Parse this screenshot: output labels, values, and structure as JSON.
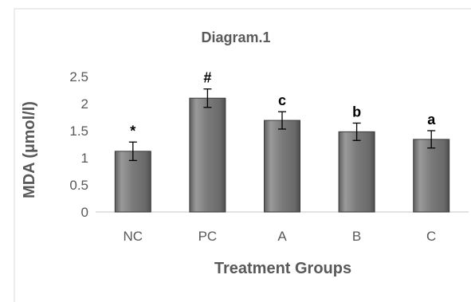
{
  "chart_data": {
    "type": "bar",
    "title": "Diagram.1",
    "xlabel": "Treatment Groups",
    "ylabel": "MDA (µmol/l)",
    "categories": [
      "NC",
      "PC",
      "A",
      "B",
      "C"
    ],
    "values": [
      1.12,
      2.1,
      1.69,
      1.48,
      1.34
    ],
    "errors": [
      0.17,
      0.17,
      0.16,
      0.16,
      0.16
    ],
    "annotations": [
      "*",
      "#",
      "c",
      "b",
      "a"
    ],
    "ylim": [
      0,
      2.5
    ],
    "yticks": [
      "0",
      "0.5",
      "1",
      "1.5",
      "2",
      "2.5"
    ],
    "grid": false,
    "legend": "none",
    "colors": {
      "bar_fill": "#7a7a7a",
      "bar_highlight": "#9a9a9a",
      "bar_edge": "#3a3a3a",
      "error_bar": "#000000",
      "text": "#595959",
      "annotation": "#000000",
      "axis": "#d9d9d9",
      "border": "#d9d9d9"
    }
  }
}
